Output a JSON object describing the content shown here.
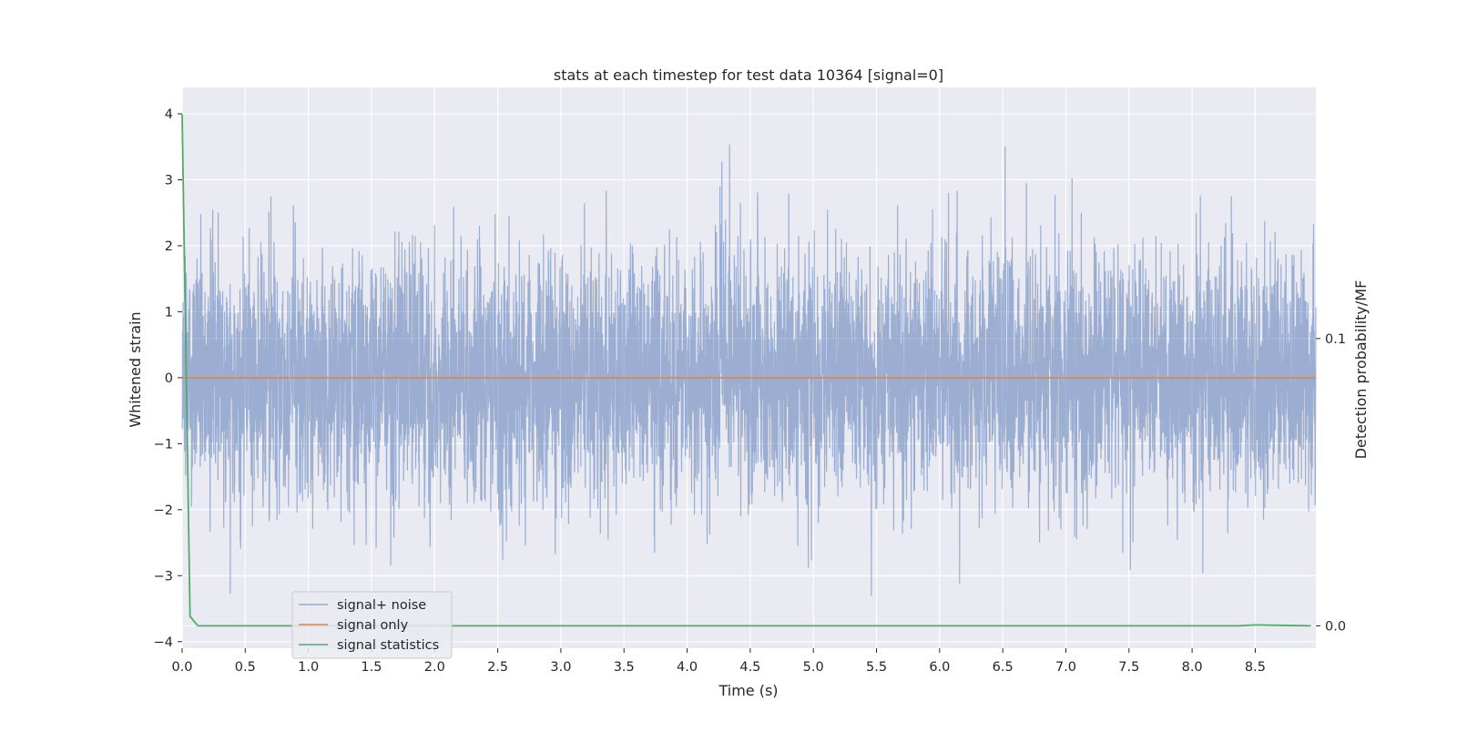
{
  "chart_data": {
    "type": "line",
    "title": "stats at each timestep for test data 10364 [signal=0]",
    "xlabel": "Time (s)",
    "ylabel": "Whitened strain",
    "y2label": "Detection probability/MF",
    "xlim": [
      0.0,
      8.98
    ],
    "ylim": [
      -4.1,
      4.4
    ],
    "y2lim": [
      -0.0078,
      0.1874
    ],
    "x_ticks": [
      0.0,
      0.5,
      1.0,
      1.5,
      2.0,
      2.5,
      3.0,
      3.5,
      4.0,
      4.5,
      5.0,
      5.5,
      6.0,
      6.5,
      7.0,
      7.5,
      8.0,
      8.5
    ],
    "x_tick_labels": [
      "0.0",
      "0.5",
      "1.0",
      "1.5",
      "2.0",
      "2.5",
      "3.0",
      "3.5",
      "4.0",
      "4.5",
      "5.0",
      "5.5",
      "6.0",
      "6.5",
      "7.0",
      "7.5",
      "8.0",
      "8.5"
    ],
    "y_ticks": [
      -4,
      -3,
      -2,
      -1,
      0,
      1,
      2,
      3,
      4
    ],
    "y_tick_labels": [
      "−4",
      "−3",
      "−2",
      "−1",
      "0",
      "1",
      "2",
      "3",
      "4"
    ],
    "y2_ticks": [
      0.0,
      0.1
    ],
    "y2_tick_labels": [
      "0.0",
      "0.1"
    ],
    "grid": true,
    "legend_position": "lower-left",
    "colors": {
      "background": "#eaeaf2",
      "grid": "#ffffff",
      "noise": "#4c72b0",
      "signal_only": "#dd8452",
      "statistics": "#55a868"
    },
    "series": [
      {
        "name": "signal+ noise",
        "axis": "left",
        "sample_rate_hz": 2048,
        "duration_s": 8.98,
        "approx_range": [
          -3.7,
          4.0
        ],
        "values": "dense whitened noise, approx. zero mean, std ≈ 1"
      },
      {
        "name": "signal only",
        "axis": "left",
        "x": [
          0.0,
          8.98
        ],
        "y": [
          0.0,
          0.0
        ]
      },
      {
        "name": "signal statistics",
        "axis": "right",
        "x": [
          0.0,
          0.063,
          0.125,
          0.25,
          1.0,
          2.0,
          3.0,
          4.0,
          5.0,
          6.0,
          7.0,
          8.0,
          8.375,
          8.5,
          8.94
        ],
        "y": [
          0.178,
          0.0033,
          0.0,
          0.0,
          0.0,
          0.0,
          0.0,
          0.0,
          0.0,
          0.0,
          0.0,
          0.0,
          0.0,
          0.0003,
          0.0
        ]
      }
    ]
  }
}
